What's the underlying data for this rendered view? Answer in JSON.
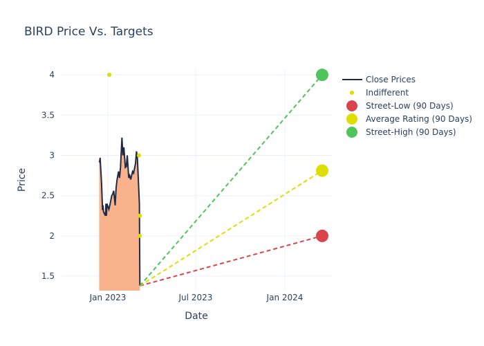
{
  "chart_data": {
    "type": "line",
    "title": "BIRD Price Vs. Targets",
    "xlabel": "Date",
    "ylabel": "Price",
    "xlim": [
      "2022-09-26",
      "2024-04-07"
    ],
    "ylim": [
      1.32,
      4.07
    ],
    "x_ticks": [
      {
        "date": "2023-01-01",
        "label": "Jan 2023"
      },
      {
        "date": "2023-07-01",
        "label": "Jul 2023"
      },
      {
        "date": "2024-01-01",
        "label": "Jan 2024"
      }
    ],
    "y_ticks": [
      {
        "v": 1.5,
        "label": "1.5"
      },
      {
        "v": 2,
        "label": "2"
      },
      {
        "v": 2.5,
        "label": "2.5"
      },
      {
        "v": 3,
        "label": "3"
      },
      {
        "v": 3.5,
        "label": "3.5"
      },
      {
        "v": 4,
        "label": "4"
      }
    ],
    "grid": true,
    "legend_position": "right",
    "close_prices": {
      "name": "Close Prices",
      "color": "#1f2a44",
      "fill": "#f8b38c",
      "x": [
        "2022-12-14",
        "2022-12-15",
        "2022-12-16",
        "2022-12-19",
        "2022-12-21",
        "2022-12-22",
        "2022-12-23",
        "2022-12-27",
        "2022-12-28",
        "2022-12-29",
        "2022-12-30",
        "2023-01-03",
        "2023-01-05",
        "2023-01-09",
        "2023-01-11",
        "2023-01-13",
        "2023-01-16",
        "2023-01-18",
        "2023-01-20",
        "2023-01-23",
        "2023-01-25",
        "2023-01-27",
        "2023-01-30",
        "2023-02-01",
        "2023-02-03",
        "2023-02-06",
        "2023-02-08",
        "2023-02-10",
        "2023-02-13",
        "2023-02-15",
        "2023-02-17",
        "2023-02-21",
        "2023-02-23",
        "2023-02-27",
        "2023-03-01",
        "2023-03-03",
        "2023-03-07",
        "2023-03-08"
      ],
      "y": [
        2.93,
        2.92,
        2.97,
        2.65,
        2.32,
        2.38,
        2.3,
        2.25,
        2.4,
        2.25,
        2.4,
        2.33,
        2.38,
        2.5,
        2.52,
        2.56,
        2.38,
        2.6,
        2.7,
        2.8,
        2.72,
        2.85,
        3.22,
        3.0,
        3.1,
        2.85,
        2.86,
        3.0,
        2.72,
        2.75,
        2.7,
        2.8,
        2.78,
        2.9,
        3.05,
        2.95,
        2.4,
        1.38
      ]
    },
    "indifferent": {
      "name": "Indifferent",
      "color": "#dede00",
      "points": [
        {
          "x": "2023-01-04",
          "y": 4.0
        },
        {
          "x": "2023-03-06",
          "y": 3.0
        },
        {
          "x": "2023-03-08",
          "y": 2.25
        },
        {
          "x": "2023-03-08",
          "y": 2.0
        }
      ]
    },
    "targets": {
      "start": {
        "x": "2023-03-08",
        "y": 1.38
      },
      "x": "2024-03-18",
      "series": [
        {
          "name": "Street-Low (90 Days)",
          "y": 2.0,
          "color": "#d9454b"
        },
        {
          "name": "Average Rating (90 Days)",
          "y": 2.81,
          "color": "#dede00"
        },
        {
          "name": "Street-High (90 Days)",
          "y": 4.0,
          "color": "#4ec45a"
        }
      ]
    }
  }
}
